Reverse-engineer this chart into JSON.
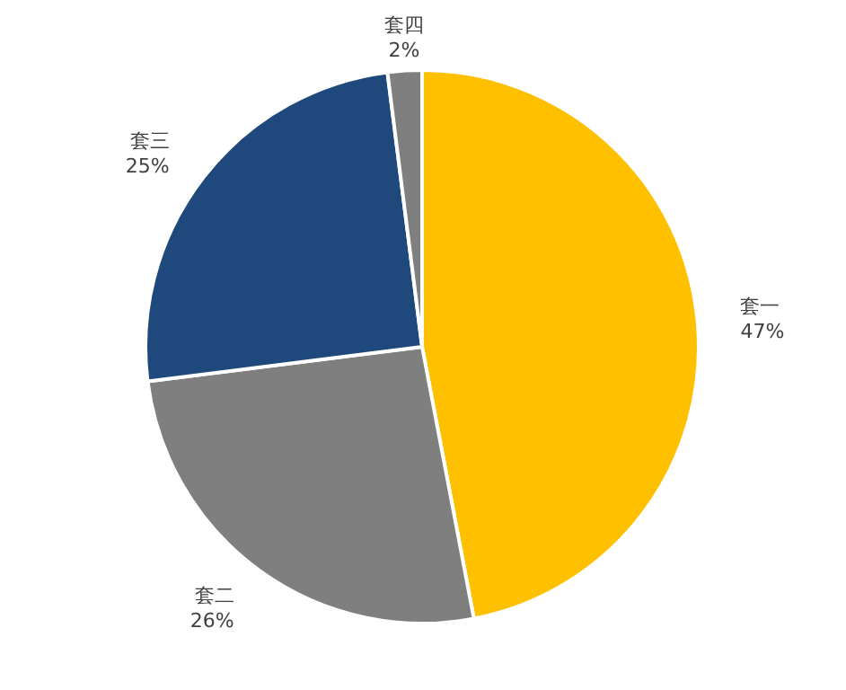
{
  "chart_data": {
    "type": "pie",
    "categories": [
      "套一",
      "套二",
      "套三",
      "套四"
    ],
    "values": [
      47,
      26,
      25,
      2
    ],
    "value_labels": [
      "47%",
      "26%",
      "25%",
      "2%"
    ],
    "colors": [
      "#ffc000",
      "#7f7f7f",
      "#1f497d",
      "#7f7f7f"
    ]
  }
}
